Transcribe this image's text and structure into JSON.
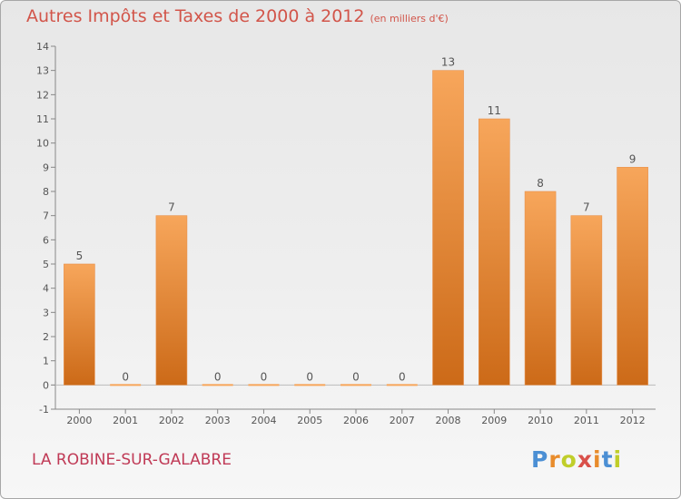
{
  "title": {
    "main": "Autres Impôts et Taxes de 2000 à 2012",
    "unit": "(en milliers d'€)"
  },
  "commune": "LA ROBINE-SUR-GALABRE",
  "logo": {
    "text": "Proxiti",
    "colors": [
      "#4b8fd4",
      "#e88c2c",
      "#c0ce2a",
      "#d9504a"
    ]
  },
  "chart_data": {
    "type": "bar",
    "title": "Autres Impôts et Taxes de 2000 à 2012",
    "subtitle": "(en milliers d'€)",
    "categories": [
      "2000",
      "2001",
      "2002",
      "2003",
      "2004",
      "2005",
      "2006",
      "2007",
      "2008",
      "2009",
      "2010",
      "2011",
      "2012"
    ],
    "values": [
      5,
      0,
      7,
      0,
      0,
      0,
      0,
      0,
      13,
      11,
      8,
      7,
      9
    ],
    "value_labels": [
      "5",
      "0",
      "7",
      "0",
      "0",
      "0",
      "0",
      "0",
      "13",
      "11",
      "8",
      "7",
      "9"
    ],
    "ylim": [
      -1,
      14
    ],
    "yticks": [
      -1,
      0,
      1,
      2,
      3,
      4,
      5,
      6,
      7,
      8,
      9,
      10,
      11,
      12,
      13,
      14
    ],
    "grid": false,
    "legend": "none",
    "bar_color_top": "#f7a65b",
    "bar_color_bottom": "#cc6a18",
    "label_color": "#555555"
  }
}
